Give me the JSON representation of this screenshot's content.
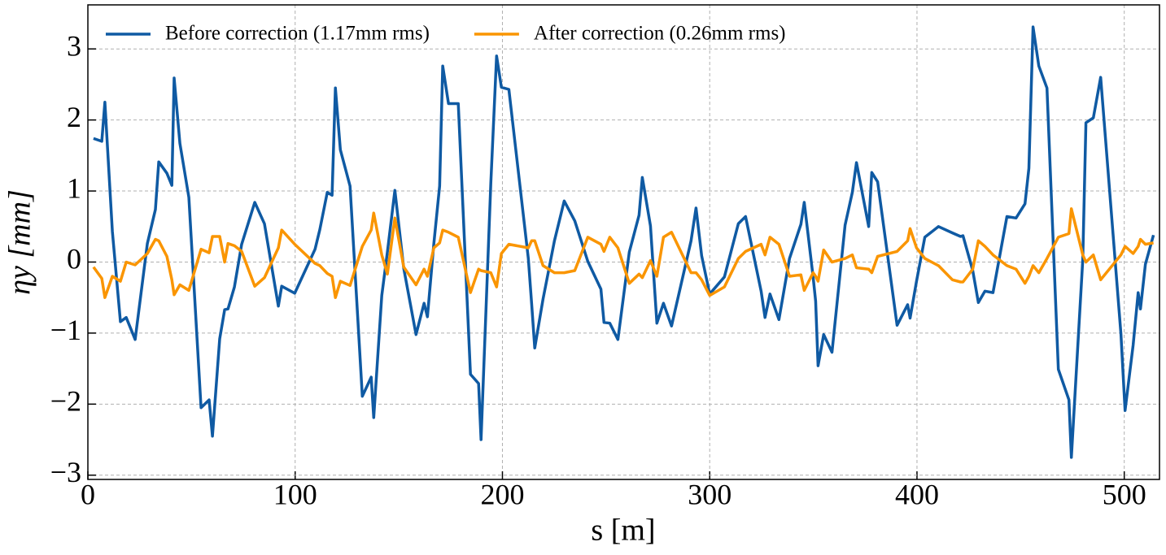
{
  "chart_data": {
    "type": "line",
    "x_label": "s [m]",
    "y_label": "ηy [mm]",
    "x": [
      2.7,
      6.7,
      8.2,
      11.8,
      15.7,
      18.5,
      22.8,
      28.7,
      32.6,
      34.2,
      38.1,
      40.5,
      41.6,
      44.4,
      48.7,
      54.6,
      58.5,
      60.1,
      63.6,
      66,
      67.6,
      70.7,
      74.2,
      80.5,
      85.2,
      91.9,
      93.5,
      99.8,
      109.6,
      111.9,
      115.5,
      117.8,
      119.4,
      121.8,
      126.5,
      132.4,
      136.7,
      137.9,
      141.8,
      144.5,
      148.1,
      152.4,
      158.3,
      162.2,
      163.8,
      166.9,
      169.7,
      171.2,
      174,
      178.7,
      184.6,
      188.5,
      189.7,
      194.4,
      197.2,
      199.5,
      203.1,
      212.5,
      214.1,
      215.6,
      219.6,
      225.1,
      229.8,
      234.9,
      241.2,
      247.5,
      249,
      251.8,
      255.7,
      261.2,
      265.9,
      267.5,
      271.4,
      274.5,
      277.7,
      281.6,
      291,
      293.4,
      296.1,
      300,
      307.1,
      313.8,
      317.3,
      324.8,
      326.7,
      329.1,
      333.4,
      338.5,
      344,
      345.6,
      349.9,
      351.1,
      352.3,
      355,
      359,
      365.3,
      368.8,
      370.8,
      376.7,
      378.2,
      381,
      390.4,
      395.5,
      396.7,
      399.8,
      403.8,
      410.4,
      417.1,
      421,
      422.2,
      426.9,
      429.6,
      432.8,
      436.7,
      443.4,
      447.8,
      452.1,
      454,
      456,
      458.8,
      462.7,
      468.2,
      473.3,
      474.5,
      480,
      481.5,
      485.1,
      488.6,
      498.4,
      500.4,
      504.3,
      506.7,
      507.8,
      510.2,
      514.1
    ],
    "series": [
      {
        "name": "Before correction (1.17mm rms)",
        "color": "#0f5aa3",
        "values": [
          1.74,
          1.7,
          2.25,
          0.43,
          -0.84,
          -0.78,
          -1.09,
          0.26,
          0.74,
          1.41,
          1.25,
          1.08,
          2.59,
          1.67,
          0.91,
          -2.05,
          -1.94,
          -2.45,
          -1.08,
          -0.67,
          -0.66,
          -0.35,
          0.25,
          0.84,
          0.54,
          -0.62,
          -0.34,
          -0.44,
          0.18,
          0.46,
          0.98,
          0.94,
          2.45,
          1.58,
          1.07,
          -1.89,
          -1.62,
          -2.19,
          -0.47,
          0.14,
          1.01,
          -0.09,
          -1.02,
          -0.58,
          -0.77,
          0.26,
          1.07,
          2.76,
          2.23,
          2.23,
          -1.58,
          -1.71,
          -2.5,
          1.11,
          2.9,
          2.46,
          2.43,
          0.05,
          -0.59,
          -1.21,
          -0.52,
          0.3,
          0.86,
          0.58,
          0.01,
          -0.38,
          -0.85,
          -0.86,
          -1.09,
          0.14,
          0.66,
          1.19,
          0.51,
          -0.86,
          -0.58,
          -0.9,
          0.3,
          0.76,
          0.09,
          -0.45,
          -0.21,
          0.54,
          0.64,
          -0.41,
          -0.78,
          -0.45,
          -0.81,
          0.05,
          0.53,
          0.84,
          -0.21,
          -0.55,
          -1.46,
          -1.02,
          -1.27,
          0.52,
          0.98,
          1.4,
          0.5,
          1.26,
          1.13,
          -0.89,
          -0.6,
          -0.79,
          -0.27,
          0.35,
          0.5,
          0.41,
          0.36,
          0.37,
          -0.12,
          -0.57,
          -0.41,
          -0.43,
          0.64,
          0.62,
          0.82,
          1.32,
          3.31,
          2.76,
          2.45,
          -1.51,
          -1.94,
          -2.75,
          0.03,
          1.96,
          2.03,
          2.6,
          -1.01,
          -2.09,
          -1.17,
          -0.43,
          -0.66,
          -0.03,
          0.38
        ]
      },
      {
        "name": "After correction (0.26mm rms)",
        "color": "#fa9500",
        "values": [
          -0.07,
          -0.23,
          -0.5,
          -0.2,
          -0.27,
          0.0,
          -0.04,
          0.12,
          0.32,
          0.3,
          0.08,
          -0.25,
          -0.46,
          -0.32,
          -0.4,
          0.18,
          0.13,
          0.36,
          0.36,
          0.0,
          0.26,
          0.23,
          0.15,
          -0.34,
          -0.22,
          0.2,
          0.45,
          0.25,
          -0.02,
          -0.05,
          -0.16,
          -0.2,
          -0.5,
          -0.27,
          -0.33,
          0.22,
          0.45,
          0.69,
          0.1,
          -0.17,
          0.62,
          -0.07,
          -0.32,
          -0.1,
          -0.2,
          0.2,
          0.27,
          0.45,
          0.42,
          0.35,
          -0.43,
          -0.1,
          -0.12,
          -0.15,
          -0.35,
          0.12,
          0.25,
          0.2,
          0.3,
          0.3,
          -0.05,
          -0.15,
          -0.15,
          -0.12,
          0.35,
          0.25,
          0.15,
          0.35,
          0.2,
          -0.3,
          -0.17,
          -0.22,
          0.02,
          -0.2,
          0.35,
          0.42,
          -0.15,
          -0.15,
          -0.25,
          -0.47,
          -0.35,
          0.05,
          0.15,
          0.25,
          0.1,
          0.35,
          0.25,
          -0.2,
          -0.18,
          -0.4,
          -0.15,
          -0.2,
          -0.27,
          0.17,
          0.0,
          0.05,
          0.1,
          -0.08,
          -0.1,
          -0.15,
          0.08,
          0.15,
          0.3,
          0.47,
          0.2,
          0.05,
          -0.05,
          -0.25,
          -0.28,
          -0.28,
          -0.1,
          0.3,
          0.22,
          0.1,
          -0.05,
          -0.1,
          -0.3,
          -0.2,
          -0.05,
          -0.15,
          0.05,
          0.35,
          0.4,
          0.75,
          0.1,
          0.0,
          0.1,
          -0.25,
          0.1,
          0.22,
          0.12,
          0.22,
          0.32,
          0.25,
          0.27
        ]
      }
    ],
    "xlim": [
      0,
      517
    ],
    "ylim": [
      -3.06,
      3.62
    ],
    "xticks": [
      0,
      100,
      200,
      300,
      400,
      500
    ],
    "yticks": [
      {
        "value": -3,
        "label": "−3"
      },
      {
        "value": -2,
        "label": "−2"
      },
      {
        "value": -1,
        "label": "−1"
      },
      0,
      1,
      2,
      3
    ],
    "grid": true,
    "legend": "upper left"
  }
}
